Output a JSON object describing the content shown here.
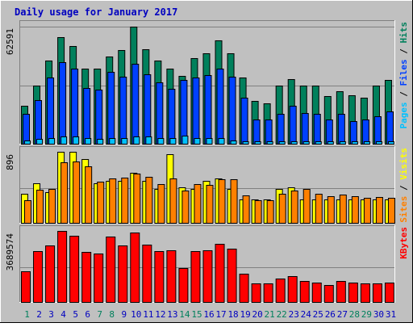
{
  "title": "Daily usage for January 2017",
  "colors": {
    "background": "#c0c0c0",
    "title": "#0000c0",
    "hits": "#00805c",
    "files": "#0040ff",
    "pages": "#00c0ff",
    "visits": "#ff8000",
    "sites": "#ffff00",
    "kbytes": "#ff0000",
    "weekend_label": "#00805c",
    "weekday_label": "#0000c0"
  },
  "chart_data": {
    "type": "bar",
    "title": "Daily usage for January 2017",
    "categories": [
      "1",
      "2",
      "3",
      "4",
      "5",
      "6",
      "7",
      "8",
      "9",
      "10",
      "11",
      "12",
      "13",
      "14",
      "15",
      "16",
      "17",
      "18",
      "19",
      "20",
      "21",
      "22",
      "23",
      "24",
      "25",
      "26",
      "27",
      "28",
      "29",
      "30",
      "31"
    ],
    "weekend_days": [
      "1",
      "7",
      "8",
      "14",
      "15",
      "21",
      "22",
      "28",
      "29"
    ],
    "panels": [
      {
        "id": "hits",
        "ymax_label": "62591",
        "ymax": 62591,
        "axis_labels": [
          {
            "text": "Pages",
            "color": "#00c0ff"
          },
          {
            "text": "Files",
            "color": "#0040ff"
          },
          {
            "text": "Hits",
            "color": "#00805c"
          }
        ],
        "series": [
          {
            "name": "Hits",
            "color": "#00805c",
            "values": [
              20000,
              31000,
              44000,
              56500,
              52000,
              40000,
              40000,
              46500,
              49800,
              62000,
              50000,
              44000,
              40000,
              36000,
              45500,
              48000,
              55000,
              48000,
              35000,
              22700,
              21500,
              31000,
              34500,
              31000,
              31000,
              25500,
              28000,
              25800,
              24500,
              31000,
              33700
            ]
          },
          {
            "name": "Files",
            "color": "#0040ff",
            "values": [
              16000,
              23000,
              35000,
              43500,
              40000,
              29500,
              28800,
              38000,
              35500,
              42500,
              37000,
              32700,
              29200,
              34000,
              35000,
              36500,
              40000,
              35500,
              24500,
              13000,
              13000,
              16000,
              20000,
              16500,
              16000,
              13000,
              16000,
              12000,
              13000,
              14500,
              17000
            ]
          },
          {
            "name": "Pages",
            "color": "#00c0ff",
            "values": [
              1900,
              2400,
              3100,
              3900,
              3700,
              2800,
              2700,
              3100,
              3100,
              3700,
              3700,
              3100,
              3100,
              4100,
              3100,
              3100,
              3100,
              1900,
              1300,
              1300,
              1300,
              1300,
              1500,
              1300,
              1300,
              1300,
              1300,
              1300,
              1300,
              1300,
              1300
            ]
          }
        ]
      },
      {
        "id": "visits",
        "ymax_label": "896",
        "ymax": 896,
        "axis_labels": [
          {
            "text": "Sites",
            "color": "#ff8000"
          },
          {
            "text": "Visits",
            "color": "#ffff00"
          }
        ],
        "series": [
          {
            "name": "Visits",
            "color": "#ffff00",
            "values": [
              370,
              500,
              390,
              896,
              896,
              800,
              500,
              530,
              530,
              630,
              530,
              430,
              870,
              450,
              430,
              530,
              560,
              430,
              300,
              300,
              300,
              430,
              450,
              300,
              300,
              300,
              300,
              300,
              300,
              300,
              300
            ]
          },
          {
            "name": "Sites",
            "color": "#ff8000",
            "values": [
              290,
              420,
              430,
              760,
              770,
              710,
              520,
              560,
              570,
              620,
              580,
              490,
              560,
              410,
              490,
              480,
              550,
              550,
              350,
              290,
              290,
              370,
              410,
              430,
              370,
              340,
              360,
              340,
              320,
              330,
              320
            ]
          }
        ]
      },
      {
        "id": "kbytes",
        "ymax_label": "3689574",
        "ymax": 3689574,
        "axis_labels": [
          {
            "text": "KBytes",
            "color": "#ff0000"
          }
        ],
        "series": [
          {
            "name": "KBytes",
            "color": "#ff0000",
            "values": [
              1580000,
              2650000,
              2930000,
              3689574,
              3450000,
              2600000,
              2530000,
              3410000,
              2930000,
              3600000,
              2980000,
              2650000,
              2680000,
              1770000,
              2650000,
              2680000,
              3000000,
              2780000,
              1450000,
              950000,
              950000,
              1220000,
              1350000,
              1100000,
              1000000,
              900000,
              1080000,
              1020000,
              980000,
              980000,
              1020000
            ]
          }
        ]
      }
    ]
  }
}
